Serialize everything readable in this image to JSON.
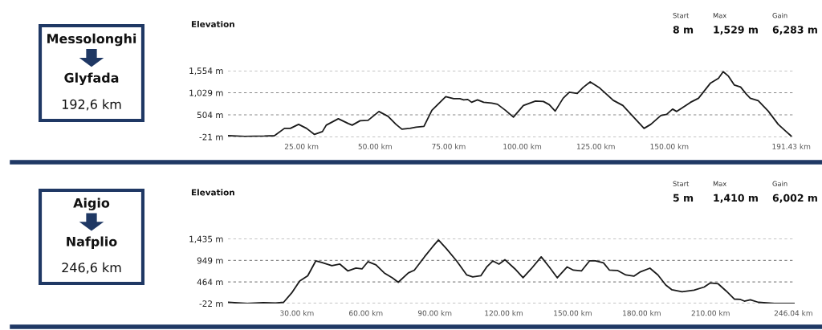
{
  "chart_data": [
    {
      "type": "other",
      "annotations": [
        "Messolonghi",
        "Glyfada",
        "192,6 km"
      ]
    },
    {
      "type": "line",
      "title": "Elevation",
      "annotations": [
        "Start",
        "8 m",
        "Max",
        "1,529 m",
        "Gain",
        "6,283 m"
      ],
      "color": "#1a1a1a",
      "grid": "y",
      "x": [
        0,
        5.7,
        12.4,
        15.8,
        19.2,
        21.2,
        24.0,
        26.7,
        29.4,
        32.1,
        33.4,
        37.5,
        40.9,
        42.2,
        44.9,
        47.6,
        51.3,
        54.4,
        57.1,
        59.1,
        61.8,
        63.9,
        66.6,
        69.3,
        74.0,
        76.7,
        78.8,
        80.1,
        81.5,
        82.8,
        84.8,
        86.9,
        89.6,
        91.6,
        94.3,
        97.0,
        100.4,
        104.5,
        107.2,
        109.2,
        111.2,
        113.9,
        116.0,
        118.7,
        120.7,
        123.1,
        126.1,
        130.9,
        134.2,
        137.6,
        141.4,
        143.7,
        147.1,
        149.1,
        151.1,
        152.5,
        154.5,
        157.2,
        159.9,
        164.0,
        166.7,
        168.3,
        170.1,
        172.1,
        174.2,
        176.2,
        177.5,
        180.2,
        183.6,
        187.0,
        189.7,
        191.4
      ],
      "values": [
        8,
        -11,
        -2,
        8,
        182,
        182,
        277,
        182,
        38,
        105,
        258,
        411,
        296,
        258,
        363,
        373,
        583,
        468,
        277,
        162,
        182,
        210,
        229,
        611,
        936,
        888,
        888,
        860,
        869,
        802,
        860,
        802,
        783,
        754,
        611,
        449,
        726,
        831,
        821,
        745,
        592,
        898,
        1041,
        1012,
        1155,
        1288,
        1155,
        850,
        726,
        468,
        182,
        277,
        487,
        516,
        640,
        583,
        678,
        802,
        898,
        1260,
        1374,
        1529,
        1422,
        1212,
        1164,
        993,
        898,
        840,
        592,
        277,
        105,
        0
      ],
      "xlim": [
        0,
        192.6
      ],
      "ylim": [
        -21,
        1554
      ],
      "xticks": [
        {
          "value": 25,
          "label": "25.00 km"
        },
        {
          "value": 50,
          "label": "50.00 km"
        },
        {
          "value": 75,
          "label": "75.00 km"
        },
        {
          "value": 100,
          "label": "100.00 km"
        },
        {
          "value": 125,
          "label": "125.00 km"
        },
        {
          "value": 150,
          "label": "150.00 km"
        },
        {
          "value": 191.43,
          "label": "191.43 km"
        }
      ],
      "yticks": [
        {
          "value": -21,
          "label": "-21 m"
        },
        {
          "value": 504,
          "label": "504 m"
        },
        {
          "value": 1029,
          "label": "1,029 m"
        },
        {
          "value": 1554,
          "label": "1,554 m"
        }
      ]
    },
    {
      "type": "other",
      "annotations": [
        "Aigio",
        "Nafplio",
        "246,6 km"
      ]
    },
    {
      "type": "line",
      "title": "Elevation",
      "annotations": [
        "Start",
        "5 m",
        "Max",
        "1,410 m",
        "Gain",
        "6,002 m"
      ],
      "color": "#1a1a1a",
      "grid": "y",
      "x": [
        0,
        8.4,
        15.4,
        20.7,
        24.2,
        27.7,
        31.2,
        34.7,
        38.2,
        40.8,
        45.2,
        48.7,
        52.2,
        55.7,
        58.3,
        60.9,
        64.4,
        68.0,
        71.5,
        74.1,
        78.5,
        81.1,
        85.5,
        89.0,
        91.6,
        95.1,
        99.5,
        103.9,
        106.5,
        110.0,
        112.6,
        115.3,
        117.9,
        120.5,
        124.9,
        128.4,
        131.9,
        136.3,
        139.8,
        143.3,
        147.6,
        150.3,
        153.8,
        157.3,
        159.9,
        163.4,
        166.0,
        169.6,
        173.1,
        176.6,
        179.2,
        183.6,
        187.1,
        190.5,
        193.2,
        197.6,
        202.8,
        207.2,
        209.8,
        213.3,
        216.8,
        220.3,
        223.0,
        224.7,
        227.3,
        230.8,
        237.8,
        246.6
      ],
      "values": [
        5,
        -22,
        -4,
        -13,
        5,
        214,
        485,
        603,
        938,
        902,
        830,
        866,
        712,
        775,
        757,
        920,
        848,
        667,
        558,
        458,
        667,
        730,
        1029,
        1255,
        1410,
        1210,
        938,
        621,
        576,
        603,
        802,
        938,
        866,
        966,
        757,
        558,
        757,
        1029,
        802,
        558,
        802,
        730,
        712,
        938,
        938,
        893,
        730,
        721,
        621,
        594,
        685,
        775,
        621,
        395,
        286,
        241,
        277,
        349,
        440,
        422,
        259,
        78,
        69,
        32,
        60,
        5,
        -22,
        -22
      ],
      "xlim": [
        0,
        246.6
      ],
      "ylim": [
        -22,
        1435
      ],
      "xticks": [
        {
          "value": 30,
          "label": "30.00 km"
        },
        {
          "value": 60,
          "label": "60.00 km"
        },
        {
          "value": 90,
          "label": "90.00 km"
        },
        {
          "value": 120,
          "label": "120.00 km"
        },
        {
          "value": 150,
          "label": "150.00 km"
        },
        {
          "value": 180,
          "label": "180.00 km"
        },
        {
          "value": 210,
          "label": "210.00 km"
        },
        {
          "value": 246.04,
          "label": "246.04 km"
        }
      ],
      "yticks": [
        {
          "value": -22,
          "label": "-22 m"
        },
        {
          "value": 464,
          "label": "464 m"
        },
        {
          "value": 949,
          "label": "949 m"
        },
        {
          "value": 1435,
          "label": "1,435 m"
        }
      ]
    }
  ]
}
